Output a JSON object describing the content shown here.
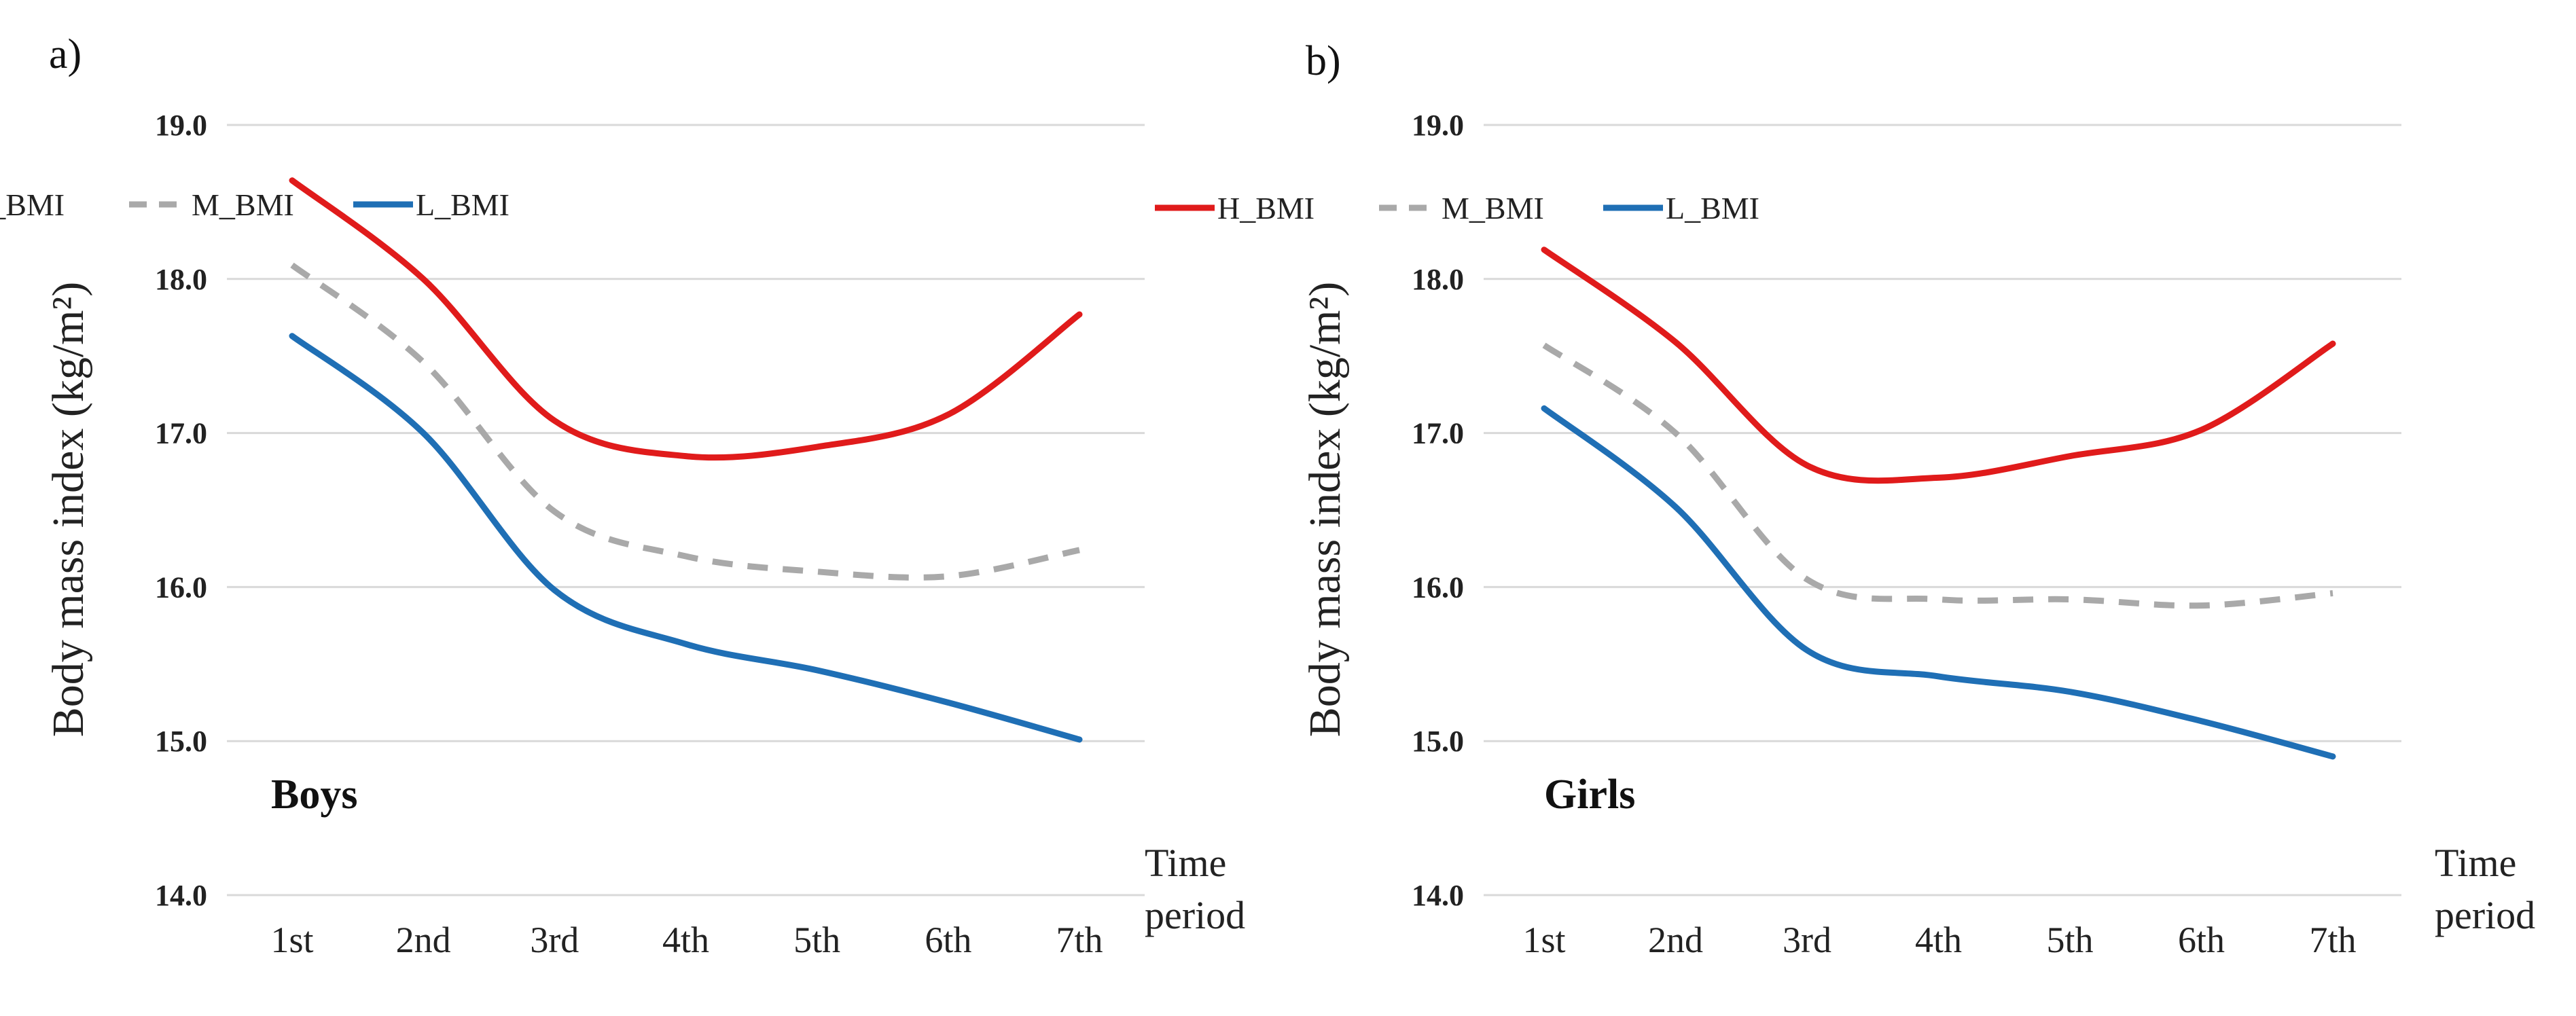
{
  "chart_data": [
    {
      "type": "line",
      "panel_label": "a)",
      "group_label": "Boys",
      "ylabel": "Body mass index (kg/m²)",
      "xlabel": "Time period",
      "xlabel_lines": [
        "Time",
        "period"
      ],
      "ylim": [
        14.0,
        19.0
      ],
      "yticks": [
        "14.0",
        "15.0",
        "16.0",
        "17.0",
        "18.0",
        "19.0"
      ],
      "grid": true,
      "legend_position": "top-right",
      "categories": [
        "1st",
        "2nd",
        "3rd",
        "4th",
        "5th",
        "6th",
        "7th"
      ],
      "series": [
        {
          "name": "H_BMI",
          "color": "#e01b1b",
          "dashed": false,
          "values": [
            18.64,
            18.0,
            17.08,
            16.85,
            16.91,
            17.12,
            17.77
          ]
        },
        {
          "name": "M_BMI",
          "color": "#a9a9a9",
          "dashed": true,
          "values": [
            18.09,
            17.46,
            16.49,
            16.2,
            16.1,
            16.07,
            16.24
          ]
        },
        {
          "name": "L_BMI",
          "color": "#1f6fb5",
          "dashed": false,
          "values": [
            17.63,
            17.0,
            15.98,
            15.63,
            15.46,
            15.25,
            15.01
          ]
        }
      ]
    },
    {
      "type": "line",
      "panel_label": "b)",
      "group_label": "Girls",
      "ylabel": "Body mass index (kg/m²)",
      "xlabel": "Time period",
      "xlabel_lines": [
        "Time",
        "period"
      ],
      "ylim": [
        14.0,
        19.0
      ],
      "yticks": [
        "14.0",
        "15.0",
        "16.0",
        "17.0",
        "18.0",
        "19.0"
      ],
      "grid": true,
      "legend_position": "top-right",
      "categories": [
        "1st",
        "2nd",
        "3rd",
        "4th",
        "5th",
        "6th",
        "7th"
      ],
      "series": [
        {
          "name": "H_BMI",
          "color": "#e01b1b",
          "dashed": false,
          "values": [
            18.19,
            17.59,
            16.79,
            16.71,
            16.85,
            17.02,
            17.58
          ]
        },
        {
          "name": "M_BMI",
          "color": "#a9a9a9",
          "dashed": true,
          "values": [
            17.57,
            17.0,
            16.05,
            15.92,
            15.92,
            15.88,
            15.96
          ]
        },
        {
          "name": "L_BMI",
          "color": "#1f6fb5",
          "dashed": false,
          "values": [
            17.16,
            16.52,
            15.59,
            15.42,
            15.32,
            15.13,
            14.9
          ]
        }
      ]
    }
  ]
}
